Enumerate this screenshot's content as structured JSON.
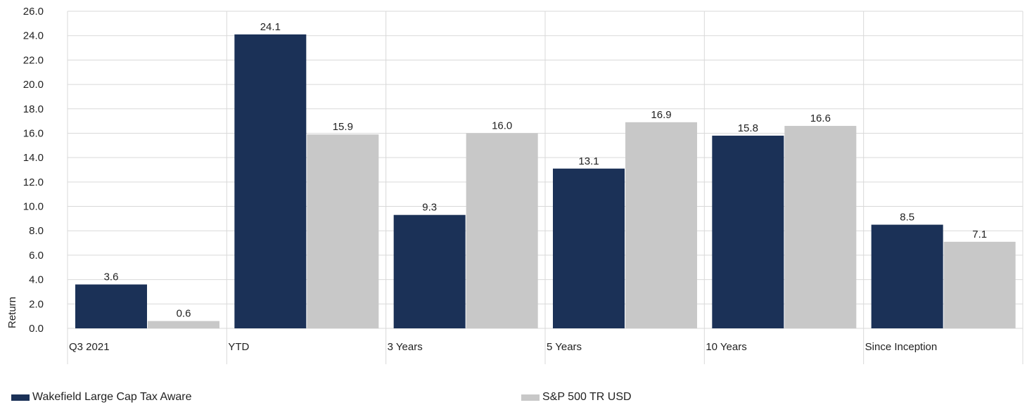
{
  "chart_data": {
    "type": "bar",
    "categories": [
      "Q3 2021",
      "YTD",
      "3 Years",
      "5 Years",
      "10 Years",
      "Since  Inception"
    ],
    "series": [
      {
        "name": "Wakefield Large Cap Tax Aware",
        "values": [
          3.6,
          24.1,
          9.3,
          13.1,
          15.8,
          8.5
        ],
        "labels": [
          "3.6",
          "24.1",
          "9.3",
          "13.1",
          "15.8",
          "8.5"
        ],
        "color": "#1b3157"
      },
      {
        "name": "S&P 500 TR USD",
        "values": [
          0.6,
          15.9,
          16.0,
          16.9,
          16.6,
          7.1
        ],
        "labels": [
          "0.6",
          "15.9",
          "16.0",
          "16.9",
          "16.6",
          "7.1"
        ],
        "color": "#c8c8c8"
      }
    ],
    "ylabel": "Return",
    "ylim": [
      0,
      26
    ],
    "yticks": [
      "0.0",
      "2.0",
      "4.0",
      "6.0",
      "8.0",
      "10.0",
      "12.0",
      "14.0",
      "16.0",
      "18.0",
      "20.0",
      "22.0",
      "24.0",
      "26.0"
    ],
    "grid": true,
    "legend_position": "bottom"
  }
}
